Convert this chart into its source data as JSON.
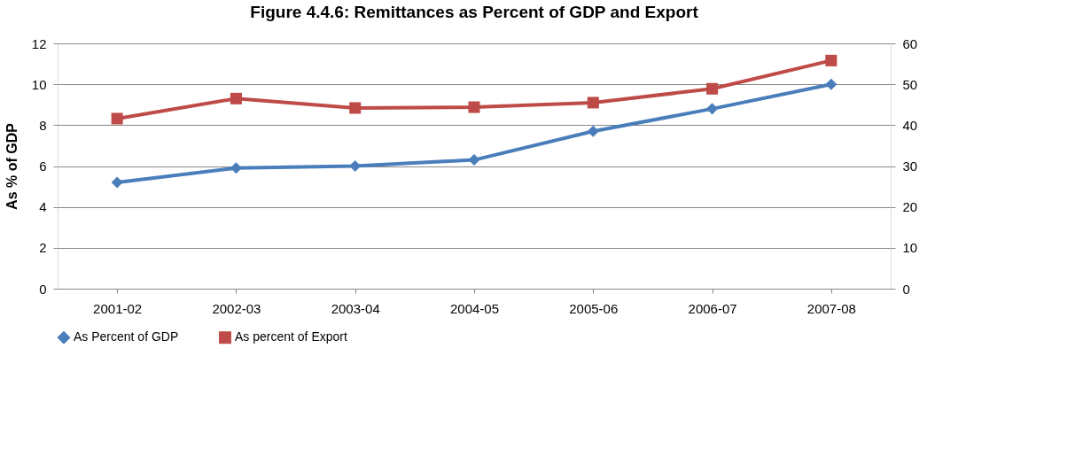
{
  "chart_data": {
    "type": "line",
    "title": "Figure 4.4.6: Remittances as Percent of GDP and Export",
    "ylabel": "As % of GDP",
    "categories": [
      "2001-02",
      "2002-03",
      "2003-04",
      "2004-05",
      "2005-06",
      "2006-07",
      "2007-08"
    ],
    "series": [
      {
        "name": "As Percent of GDP",
        "color": "#4a7ebb",
        "marker": "diamond",
        "values": [
          5.2,
          5.9,
          6.0,
          6.3,
          7.7,
          8.8,
          10.0
        ]
      },
      {
        "name": "As percent of Export",
        "color": "#be4b48",
        "marker": "square",
        "axis": "y2",
        "values": [
          41.6,
          46.5,
          44.2,
          44.4,
          45.5,
          48.9,
          55.8
        ]
      }
    ],
    "ylim": [
      0,
      12
    ],
    "yticks": [
      0,
      2,
      4,
      6,
      8,
      10,
      12
    ],
    "y2lim": [
      0,
      60
    ],
    "y2ticks": [
      0,
      10,
      20,
      30,
      40,
      50,
      60
    ],
    "grid": "y",
    "legend": "bottom",
    "line_style": "solid"
  }
}
